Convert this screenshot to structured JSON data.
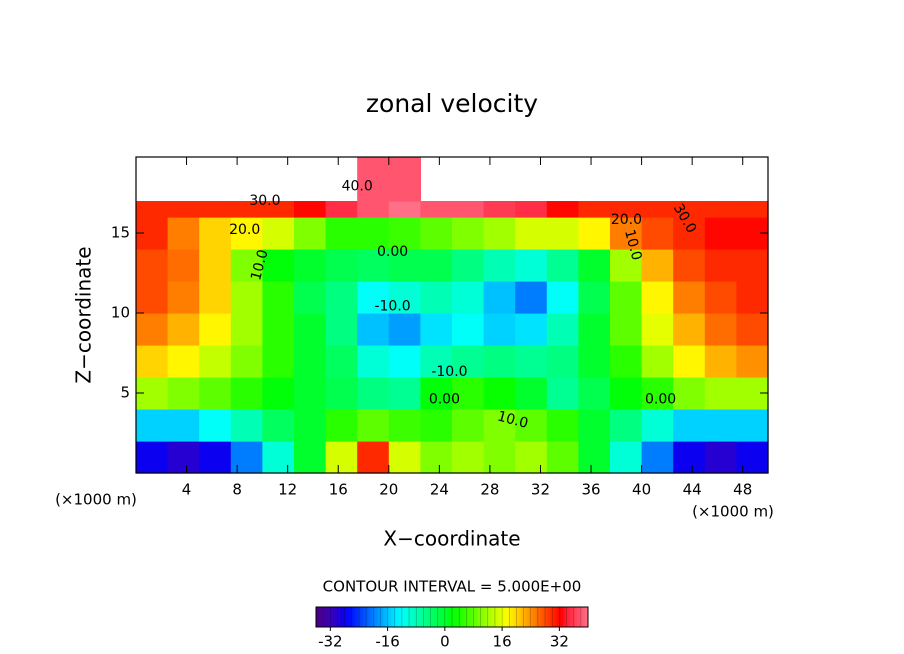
{
  "chart_data": {
    "type": "contour",
    "title": "zonal velocity",
    "x_label": "X−coordinate",
    "y_label": "Z−coordinate",
    "x_unit_label": "(×1000 m)",
    "y_unit_label": "(×1000 m)",
    "xlim": [
      0,
      50
    ],
    "ylim": [
      0,
      19.75
    ],
    "xticks": [
      4,
      8,
      12,
      16,
      20,
      24,
      28,
      32,
      36,
      40,
      44,
      48
    ],
    "yticks": [
      5,
      10,
      15
    ],
    "x_edges": [
      0,
      2.5,
      5,
      7.5,
      10,
      12.5,
      15,
      17.5,
      20,
      22.5,
      25,
      27.5,
      30,
      32.5,
      35,
      37.5,
      40,
      42.5,
      45,
      47.5,
      50
    ],
    "y_edges": [
      0,
      2,
      4,
      6,
      8,
      10,
      12,
      14,
      16,
      17,
      19.75
    ],
    "values": [
      [
        -28,
        -30,
        -28,
        -20,
        -10,
        0,
        15,
        30,
        15,
        10,
        12,
        10,
        12,
        8,
        0,
        -10,
        -20,
        -28,
        -30,
        -28
      ],
      [
        -15,
        -15,
        -12,
        -8,
        -3,
        0,
        5,
        8,
        6,
        5,
        8,
        10,
        8,
        5,
        0,
        -5,
        -10,
        -15,
        -15,
        -15
      ],
      [
        12,
        10,
        8,
        5,
        2,
        0,
        -2,
        -5,
        -6,
        2,
        5,
        3,
        0,
        -6,
        -2,
        2,
        5,
        10,
        12,
        12
      ],
      [
        20,
        18,
        14,
        10,
        5,
        0,
        -3,
        -10,
        -12,
        -8,
        -6,
        -5,
        -6,
        -5,
        0,
        5,
        12,
        18,
        22,
        24
      ],
      [
        25,
        22,
        18,
        12,
        5,
        0,
        -5,
        -16,
        -18,
        -14,
        -12,
        -15,
        -14,
        -8,
        0,
        8,
        16,
        22,
        26,
        28
      ],
      [
        28,
        25,
        20,
        12,
        5,
        -2,
        -5,
        -12,
        -10,
        -8,
        -10,
        -16,
        -20,
        -12,
        -2,
        8,
        18,
        25,
        28,
        30
      ],
      [
        28,
        26,
        20,
        10,
        2,
        0,
        -2,
        -3,
        -2,
        -2,
        -5,
        -8,
        -10,
        -6,
        0,
        12,
        22,
        28,
        30,
        30
      ],
      [
        30,
        25,
        20,
        18,
        15,
        10,
        5,
        5,
        6,
        8,
        10,
        12,
        15,
        15,
        18,
        25,
        28,
        30,
        32,
        32
      ],
      [
        30,
        30,
        30,
        30,
        30,
        32,
        35,
        38,
        40,
        38,
        38,
        36,
        35,
        32,
        30,
        30,
        30,
        30,
        30,
        30
      ],
      [
        null,
        null,
        null,
        null,
        null,
        null,
        null,
        38,
        38,
        null,
        null,
        null,
        null,
        null,
        null,
        null,
        null,
        null,
        null,
        null
      ]
    ],
    "contour_labels": [
      "40.0",
      "30.0",
      "30.0",
      "20.0",
      "20.0",
      "10.0",
      "10.0",
      "0.00",
      "-10.0",
      "-10.0",
      "0.00",
      "0.00",
      "10.0"
    ],
    "contour_interval_label": "CONTOUR INTERVAL = 5.000E+00",
    "clim": [
      -36,
      40
    ],
    "cticks": [
      -32,
      -16,
      0,
      16,
      32
    ]
  }
}
